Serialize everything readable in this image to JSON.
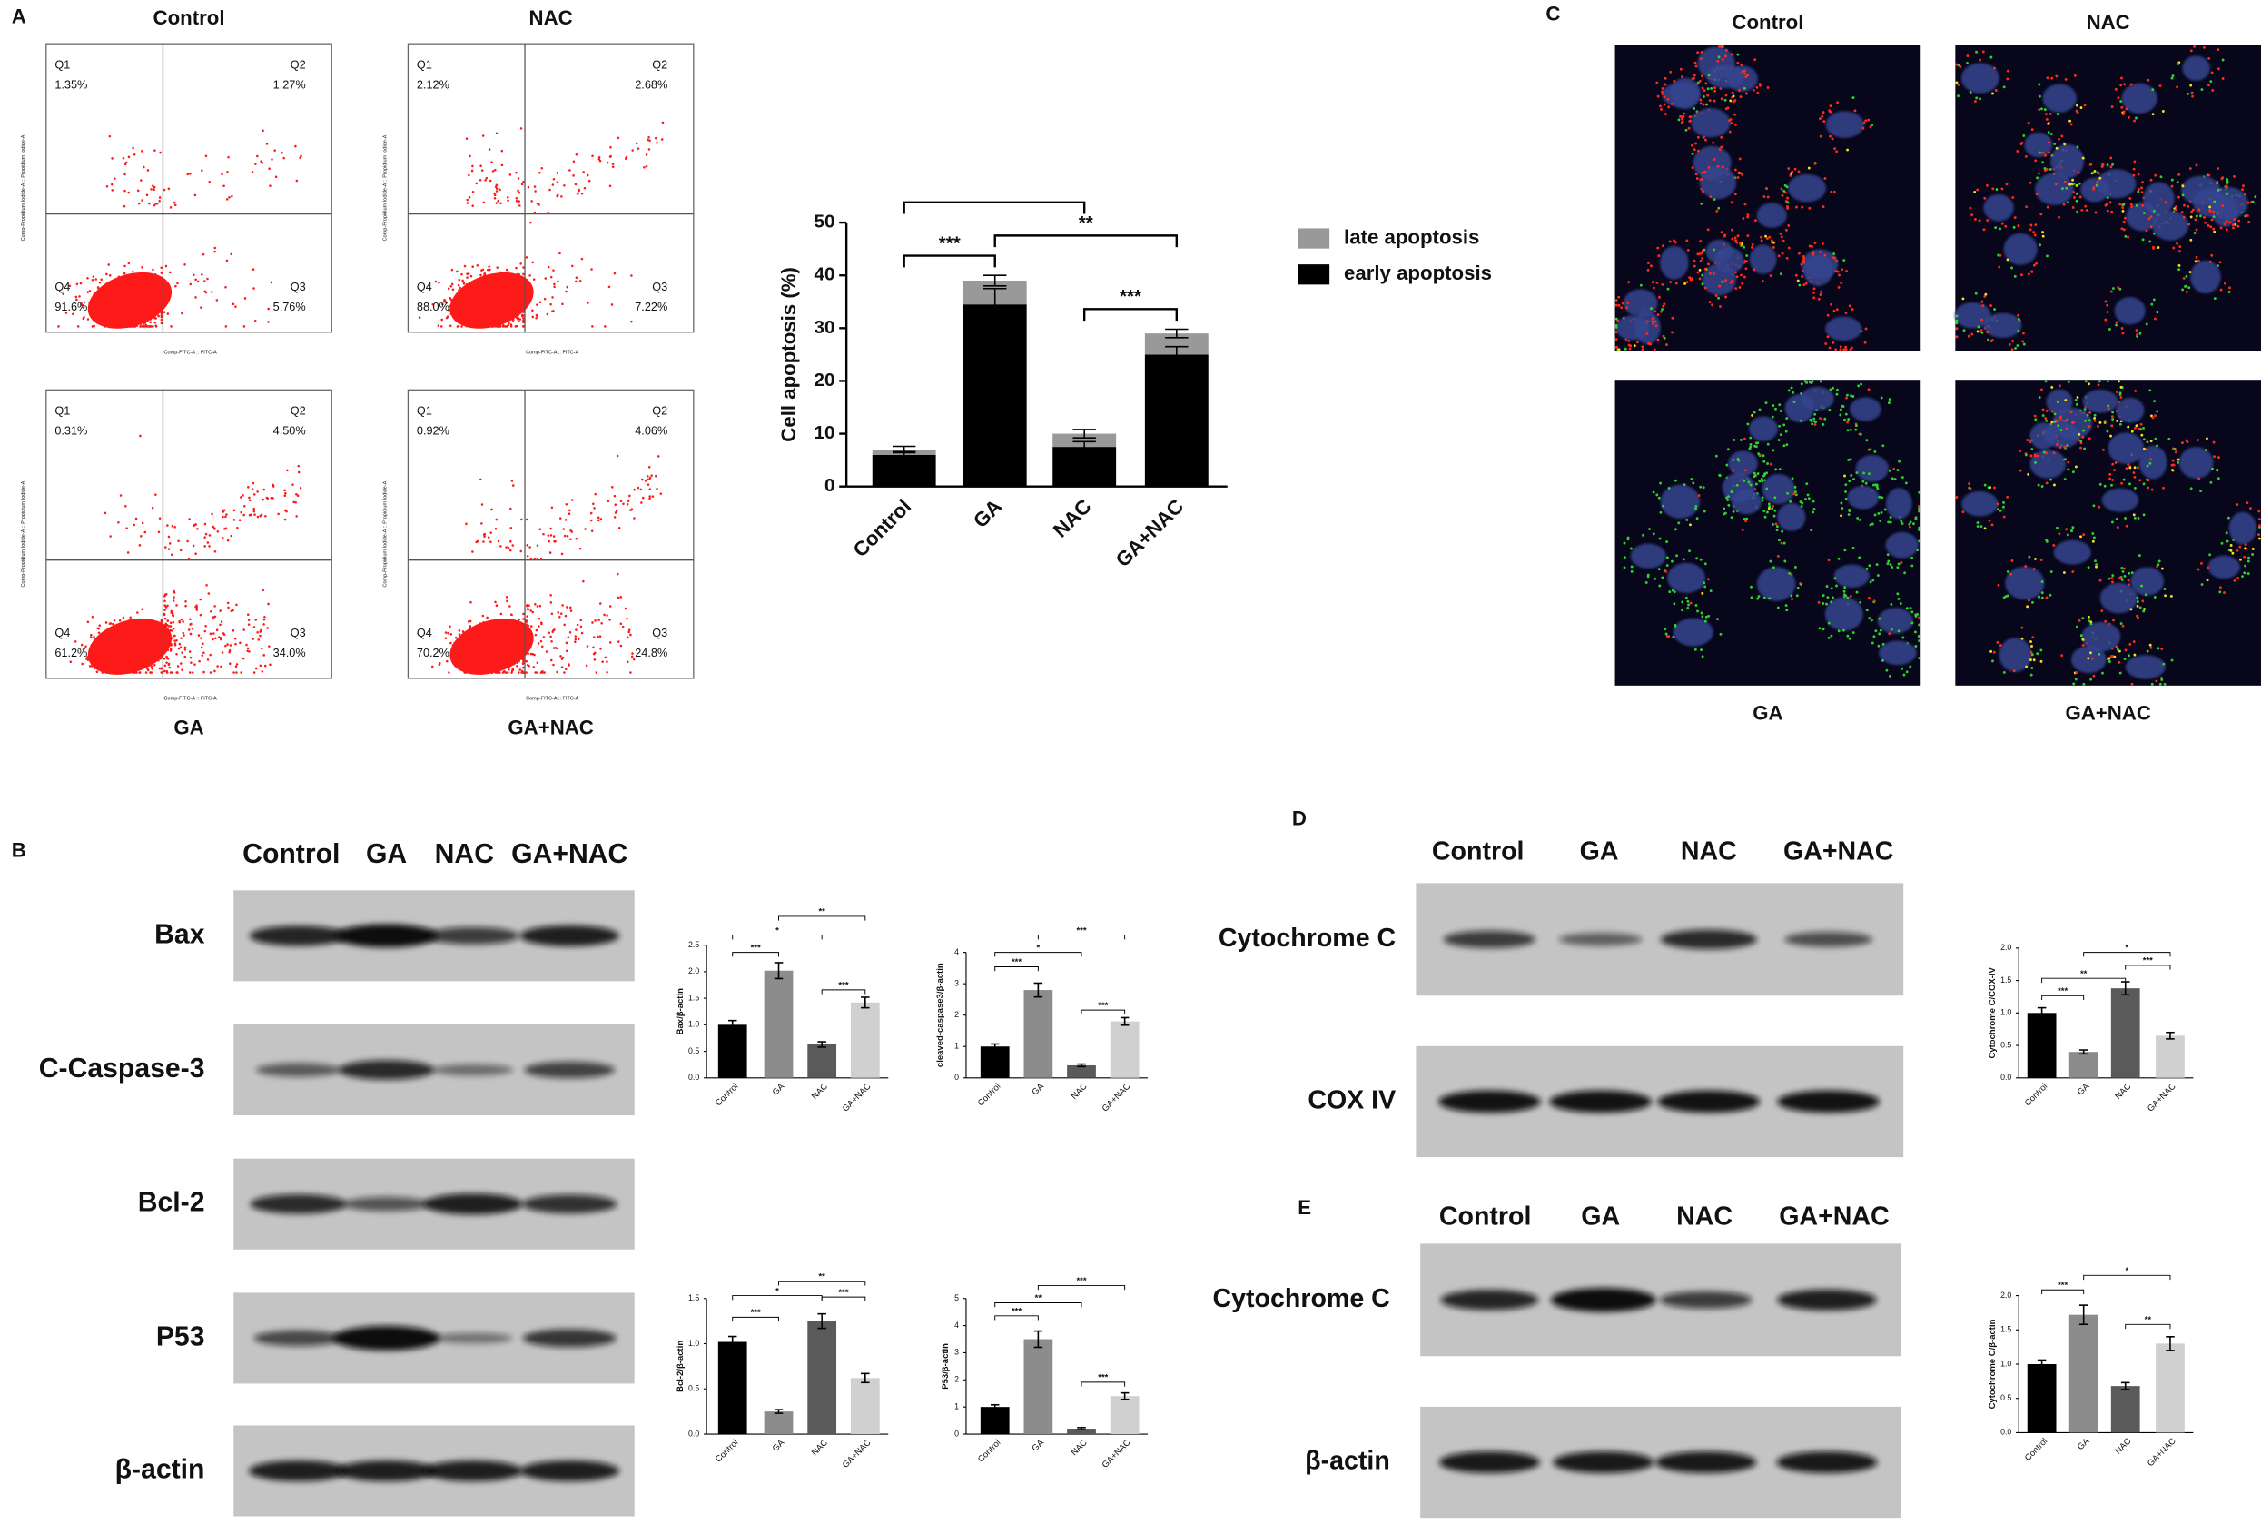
{
  "panel_labels": [
    "A",
    "B",
    "C",
    "D",
    "E"
  ],
  "flow": {
    "x_label": "Comp-FITC-A :: FITC-A",
    "y_label": "Comp-Propidium Iodide-A :: Propidium Iodide-A",
    "quadrants": [
      "Q1",
      "Q2",
      "Q3",
      "Q4"
    ],
    "panels": [
      {
        "title": "Control",
        "percents": [
          1.35,
          1.27,
          5.76,
          91.6
        ],
        "value_labels": [
          "1.35%",
          "1.27%",
          "5.76%",
          "91.6%"
        ]
      },
      {
        "title": "NAC",
        "percents": [
          2.12,
          2.68,
          7.22,
          88.0
        ],
        "value_labels": [
          "2.12%",
          "2.68%",
          "7.22%",
          "88.0%"
        ]
      },
      {
        "title": "GA",
        "percents": [
          0.31,
          4.5,
          34.0,
          61.2
        ],
        "value_labels": [
          "0.31%",
          "4.50%",
          "34.0%",
          "61.2%"
        ]
      },
      {
        "title": "GA+NAC",
        "percents": [
          0.92,
          4.06,
          24.8,
          70.2
        ],
        "value_labels": [
          "0.92%",
          "4.06%",
          "24.8%",
          "70.2%"
        ]
      }
    ]
  },
  "chart_data": [
    {
      "type": "bar",
      "stacked": true,
      "y_label": "Cell apoptosis (%)",
      "categories": [
        "Control",
        "GA",
        "NAC",
        "GA+NAC"
      ],
      "series": [
        {
          "name": "early apoptosis",
          "color": "#000000",
          "values": [
            6,
            34.5,
            7.5,
            25
          ],
          "errors": [
            0.6,
            3,
            1,
            1.5
          ]
        },
        {
          "name": "late apoptosis",
          "color": "#999999",
          "values": [
            1,
            4.5,
            2.5,
            4
          ],
          "errors": [
            0.6,
            1,
            0.8,
            0.8
          ]
        }
      ],
      "ylim": [
        0,
        50
      ],
      "yticks": [
        0,
        10,
        20,
        30,
        40,
        50
      ],
      "annotations": [
        "***",
        "**",
        "***"
      ]
    },
    {
      "type": "bar",
      "y_label": "Bax/β-actin",
      "categories": [
        "Control",
        "GA",
        "NAC",
        "GA+NAC"
      ],
      "values": [
        1.0,
        2.02,
        0.63,
        1.42
      ],
      "errors": [
        0.08,
        0.15,
        0.05,
        0.1
      ],
      "colors": [
        "#000000",
        "#8c8c8c",
        "#5a5a5a",
        "#d0d0d0"
      ],
      "ylim": [
        0,
        2.5
      ],
      "yticks": [
        {
          "value": 0,
          "label": "0.0"
        },
        0.5,
        {
          "value": 1,
          "label": "1.0"
        },
        1.5,
        {
          "value": 2,
          "label": "2.0"
        },
        2.5
      ],
      "annotations": [
        "**",
        "*",
        "***",
        "***"
      ]
    },
    {
      "type": "bar",
      "y_label": "cleaved-caspase3/β-actin",
      "categories": [
        "Control",
        "GA",
        "NAC",
        "GA+NAC"
      ],
      "values": [
        1.0,
        2.8,
        0.4,
        1.8
      ],
      "errors": [
        0.08,
        0.22,
        0.04,
        0.12
      ],
      "colors": [
        "#000000",
        "#8c8c8c",
        "#5a5a5a",
        "#d0d0d0"
      ],
      "ylim": [
        0,
        4
      ],
      "yticks": [
        0,
        1,
        2,
        3,
        4
      ],
      "annotations": [
        "***",
        "*",
        "***",
        "***"
      ]
    },
    {
      "type": "bar",
      "y_label": "Bcl-2/β-actin",
      "categories": [
        "Control",
        "GA",
        "NAC",
        "GA+NAC"
      ],
      "values": [
        1.02,
        0.25,
        1.25,
        0.62
      ],
      "errors": [
        0.06,
        0.02,
        0.08,
        0.05
      ],
      "colors": [
        "#000000",
        "#8c8c8c",
        "#5a5a5a",
        "#d0d0d0"
      ],
      "ylim": [
        0,
        1.5
      ],
      "yticks": [
        {
          "value": 0,
          "label": "0.0"
        },
        0.5,
        {
          "value": 1,
          "label": "1.0"
        },
        1.5
      ],
      "annotations": [
        "**",
        "*",
        "***",
        "***"
      ]
    },
    {
      "type": "bar",
      "y_label": "P53/β-actin",
      "categories": [
        "Control",
        "GA",
        "NAC",
        "GA+NAC"
      ],
      "values": [
        1.0,
        3.5,
        0.2,
        1.4
      ],
      "errors": [
        0.08,
        0.3,
        0.04,
        0.12
      ],
      "colors": [
        "#000000",
        "#8c8c8c",
        "#5a5a5a",
        "#d0d0d0"
      ],
      "ylim": [
        0,
        5
      ],
      "yticks": [
        0,
        1,
        2,
        3,
        4,
        5
      ],
      "annotations": [
        "***",
        "**",
        "***",
        "***"
      ]
    },
    {
      "type": "bar",
      "y_label": "Cytochrome C/COX-IV",
      "categories": [
        "Control",
        "GA",
        "NAC",
        "GA+NAC"
      ],
      "values": [
        1.0,
        0.4,
        1.38,
        0.65
      ],
      "errors": [
        0.08,
        0.03,
        0.1,
        0.05
      ],
      "colors": [
        "#000000",
        "#8c8c8c",
        "#5a5a5a",
        "#d0d0d0"
      ],
      "ylim": [
        0,
        2
      ],
      "yticks": [
        {
          "value": 0,
          "label": "0.0"
        },
        0.5,
        {
          "value": 1,
          "label": "1.0"
        },
        1.5,
        {
          "value": 2,
          "label": "2.0"
        }
      ],
      "annotations": [
        "*",
        "***",
        "**",
        "***"
      ]
    },
    {
      "type": "bar",
      "y_label": "Cytochrome C/β-actin",
      "categories": [
        "Control",
        "GA",
        "NAC",
        "GA+NAC"
      ],
      "values": [
        1.0,
        1.72,
        0.68,
        1.3
      ],
      "errors": [
        0.06,
        0.14,
        0.05,
        0.1
      ],
      "colors": [
        "#000000",
        "#8c8c8c",
        "#5a5a5a",
        "#d0d0d0"
      ],
      "ylim": [
        0,
        2
      ],
      "yticks": [
        {
          "value": 0,
          "label": "0.0"
        },
        0.5,
        {
          "value": 1,
          "label": "1.0"
        },
        1.5,
        {
          "value": 2,
          "label": "2.0"
        }
      ],
      "annotations": [
        "*",
        "***",
        "**"
      ]
    }
  ],
  "blot_b": {
    "lanes": [
      "Control",
      "GA",
      "NAC",
      "GA+NAC"
    ],
    "rows": [
      "Bax",
      "C-Caspase-3",
      "Bcl-2",
      "P53",
      "β-actin"
    ]
  },
  "blot_d": {
    "lanes": [
      "Control",
      "GA",
      "NAC",
      "GA+NAC"
    ],
    "rows": [
      "Cytochrome C",
      "COX IV"
    ]
  },
  "blot_e": {
    "lanes": [
      "Control",
      "GA",
      "NAC",
      "GA+NAC"
    ],
    "rows": [
      "Cytochrome C",
      "β-actin"
    ]
  },
  "microscopy": {
    "titles": [
      "Control",
      "NAC",
      "GA",
      "GA+NAC"
    ]
  }
}
